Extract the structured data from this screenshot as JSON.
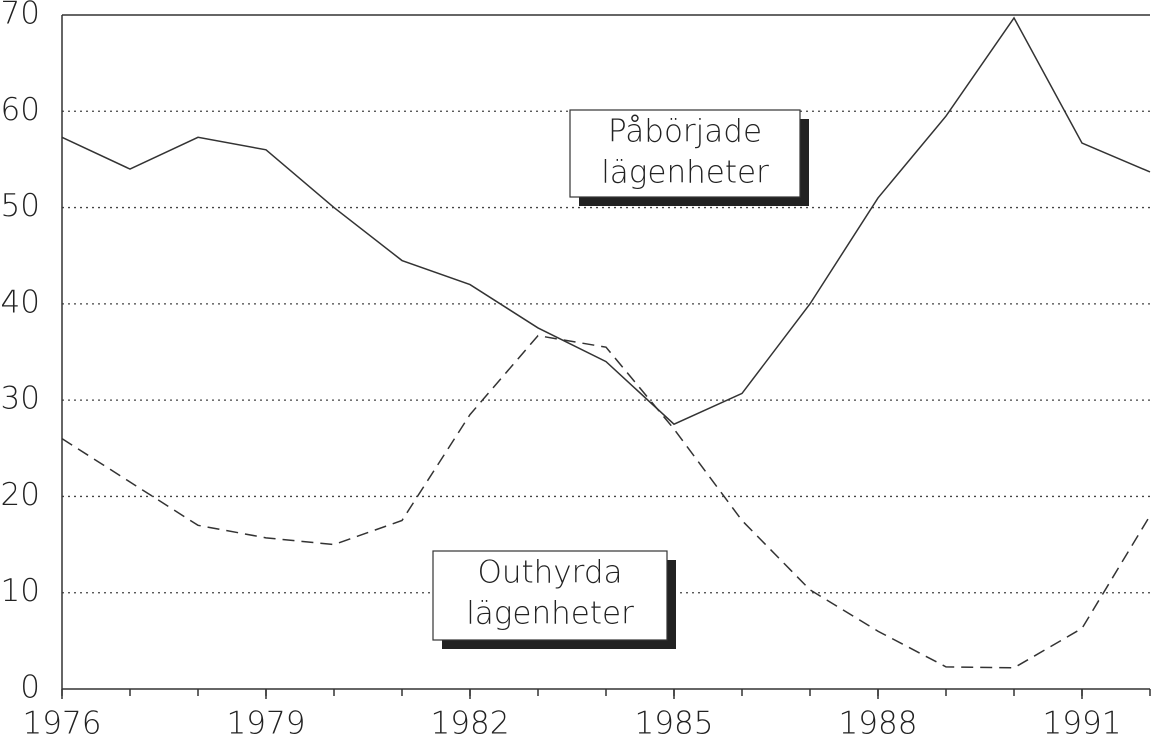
{
  "chart_data": {
    "type": "line",
    "x": [
      1976,
      1977,
      1978,
      1979,
      1980,
      1981,
      1982,
      1983,
      1984,
      1985,
      1986,
      1987,
      1988,
      1989,
      1990,
      1991,
      1992
    ],
    "series": [
      {
        "label": [
          "Påbörjade",
          "lägenheter"
        ],
        "color": "#333333",
        "style": "solid",
        "values": [
          57.3,
          54,
          57.3,
          56,
          50,
          44.5,
          42,
          37.5,
          34,
          27.5,
          30.7,
          40,
          51,
          59.5,
          69.7,
          56.7,
          53.7
        ]
      },
      {
        "label": [
          "Outhyrda",
          "lägenheter"
        ],
        "color": "#333333",
        "style": "dashed",
        "values": [
          26,
          21.5,
          17,
          15.7,
          15,
          17.5,
          28.5,
          36.7,
          35.5,
          27,
          17.5,
          10.3,
          6,
          2.3,
          2.2,
          6.3,
          18
        ]
      }
    ],
    "xlim": [
      1976,
      1992
    ],
    "xticks": [
      1976,
      1979,
      1982,
      1985,
      1988,
      1991
    ],
    "ylim": [
      0,
      70
    ],
    "yticks": [
      0,
      10,
      20,
      30,
      40,
      50,
      60,
      70
    ],
    "grid": true
  }
}
